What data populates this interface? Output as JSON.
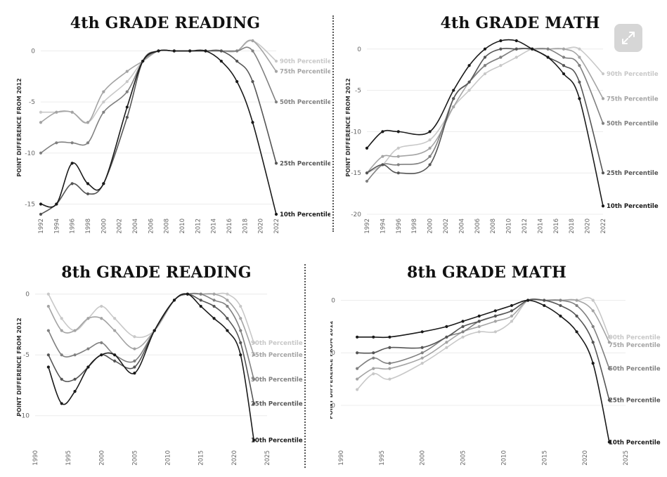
{
  "colors": {
    "p10": "#1a1a1a",
    "p25": "#555555",
    "p50": "#808080",
    "p75": "#a4a4a4",
    "p90": "#c8c8c8"
  },
  "chart_data": [
    {
      "type": "line",
      "title": "4th GRADE READING",
      "ylabel": "POINT DIFFERENCE FROM 2012",
      "xlim": [
        1992,
        2022
      ],
      "ylim": [
        -16,
        1
      ],
      "yticks": [
        0,
        -5,
        -10,
        -15
      ],
      "xticks": [
        1992,
        1994,
        1996,
        1998,
        2000,
        2002,
        2004,
        2006,
        2008,
        2010,
        2012,
        2014,
        2016,
        2018,
        2020,
        2022
      ],
      "x": [
        1992,
        1994,
        1996,
        1998,
        2000,
        2003,
        2005,
        2007,
        2009,
        2011,
        2013,
        2015,
        2017,
        2019,
        2022
      ],
      "series": [
        {
          "name": "90th Percentile",
          "color": "p90",
          "values": [
            -6,
            -6,
            -6,
            -7,
            -5,
            -3,
            -1,
            0,
            0,
            0,
            0,
            0,
            0,
            1,
            -1
          ]
        },
        {
          "name": "75th Percentile",
          "color": "p75",
          "values": [
            -7,
            -6,
            -6,
            -7,
            -4,
            -2,
            -1,
            0,
            0,
            0,
            0,
            0,
            0,
            1,
            -2
          ]
        },
        {
          "name": "50th Percentile",
          "color": "p50",
          "values": [
            -10,
            -9,
            -9,
            -9,
            -6,
            -4,
            -1,
            0,
            0,
            0,
            0,
            0,
            0,
            0,
            -5
          ]
        },
        {
          "name": "25th Percentile",
          "color": "p25",
          "values": [
            -16,
            -15,
            -13,
            -14,
            -13,
            -6.5,
            -1,
            0,
            0,
            0,
            0,
            0,
            -1,
            -3,
            -11
          ]
        },
        {
          "name": "10th Percentile",
          "color": "p10",
          "values": [
            -15,
            -15,
            -11,
            -13,
            -13,
            -5.5,
            -1,
            0,
            0,
            0,
            0,
            -1,
            -3,
            -7,
            -16
          ]
        }
      ]
    },
    {
      "type": "line",
      "title": "4th GRADE MATH",
      "ylabel": "POINT DIFFERENCE FROM 2012",
      "xlim": [
        1992,
        2022
      ],
      "ylim": [
        -20,
        1
      ],
      "yticks": [
        0,
        -5,
        -10,
        -15,
        -20
      ],
      "xticks": [
        1992,
        1994,
        1996,
        1998,
        2000,
        2002,
        2004,
        2006,
        2008,
        2010,
        2012,
        2014,
        2016,
        2018,
        2020,
        2022
      ],
      "x": [
        1992,
        1994,
        1996,
        2000,
        2003,
        2005,
        2007,
        2009,
        2011,
        2013,
        2015,
        2017,
        2019,
        2022
      ],
      "series": [
        {
          "name": "90th Percentile",
          "color": "p90",
          "values": [
            -15,
            -14,
            -12,
            -11,
            -7,
            -5,
            -3,
            -2,
            -1,
            0,
            0,
            0,
            0,
            -3
          ]
        },
        {
          "name": "75th Percentile",
          "color": "p75",
          "values": [
            -15,
            -13,
            -13,
            -12,
            -7,
            -4,
            -2,
            -1,
            0,
            0,
            0,
            0,
            -1,
            -6
          ]
        },
        {
          "name": "50th Percentile",
          "color": "p50",
          "values": [
            -16,
            -14,
            -14,
            -13,
            -6,
            -4,
            -2,
            -1,
            0,
            0,
            0,
            -1,
            -2,
            -9
          ]
        },
        {
          "name": "25th Percentile",
          "color": "p25",
          "values": [
            -15,
            -14,
            -15,
            -14,
            -6,
            -4,
            -1,
            0,
            0,
            0,
            -1,
            -2,
            -4,
            -15
          ]
        },
        {
          "name": "10th Percentile",
          "color": "p10",
          "values": [
            -12,
            -10,
            -10,
            -10,
            -5,
            -2,
            0,
            1,
            1,
            0,
            -1,
            -3,
            -6,
            -19
          ]
        }
      ]
    },
    {
      "type": "line",
      "title": "8th GRADE READING",
      "ylabel": "POINT DIFFERENCE FROM 2012",
      "xlim": [
        1990,
        2025
      ],
      "ylim": [
        -12.5,
        0.5
      ],
      "yticks": [
        0,
        -5,
        -10
      ],
      "xticks": [
        1990,
        1995,
        2000,
        2005,
        2010,
        2015,
        2020,
        2025
      ],
      "x": [
        1992,
        1994,
        1996,
        1998,
        2000,
        2002,
        2005,
        2008,
        2011,
        2013,
        2015,
        2017,
        2019,
        2021,
        2023
      ],
      "series": [
        {
          "name": "90th Percentile",
          "color": "p90",
          "values": [
            0,
            -2,
            -3,
            -2,
            -1,
            -2,
            -3.5,
            -3,
            -0.5,
            0,
            0,
            0,
            0,
            -1,
            -4
          ]
        },
        {
          "name": "75th Percentile",
          "color": "p75",
          "values": [
            -1,
            -3,
            -3,
            -2,
            -2,
            -3,
            -4.5,
            -3,
            -0.5,
            0,
            0,
            0,
            -0.5,
            -2,
            -5
          ]
        },
        {
          "name": "50th Percentile",
          "color": "p50",
          "values": [
            -3,
            -5,
            -5,
            -4.5,
            -4,
            -5,
            -5.5,
            -3,
            -0.5,
            0,
            0,
            -0.5,
            -1,
            -3,
            -7
          ]
        },
        {
          "name": "25th Percentile",
          "color": "p25",
          "values": [
            -5,
            -7,
            -7,
            -6,
            -5,
            -5.5,
            -6,
            -3,
            -0.5,
            0,
            -0.5,
            -1,
            -2,
            -4,
            -9
          ]
        },
        {
          "name": "10th Percentile",
          "color": "p10",
          "values": [
            -6,
            -9,
            -8,
            -6,
            -5,
            -5,
            -6.5,
            -3,
            -0.5,
            0,
            -1,
            -2,
            -3,
            -5,
            -12
          ]
        }
      ]
    },
    {
      "type": "line",
      "title": "8th GRADE MATH",
      "ylabel": "POINT DIFFERENCE FROM 2012",
      "xlim": [
        1990,
        2025
      ],
      "ylim": [
        -27.5,
        1
      ],
      "yticks": [
        0,
        -10,
        -20
      ],
      "xticks": [
        1990,
        1995,
        2000,
        2005,
        2010,
        2015,
        2020,
        2025
      ],
      "x": [
        1992,
        1994,
        1996,
        2000,
        2003,
        2005,
        2007,
        2009,
        2011,
        2013,
        2015,
        2017,
        2019,
        2021,
        2023
      ],
      "series": [
        {
          "name": "90th Percentile",
          "color": "p90",
          "values": [
            -17,
            -14,
            -15,
            -12,
            -9,
            -7,
            -6,
            -6,
            -4,
            0,
            0,
            0,
            0,
            0,
            -7
          ]
        },
        {
          "name": "75th Percentile",
          "color": "p75",
          "values": [
            -15,
            -13,
            -13,
            -11,
            -8,
            -6,
            -5,
            -4,
            -3,
            0,
            0,
            0,
            0,
            -2,
            -8
          ]
        },
        {
          "name": "50th Percentile",
          "color": "p50",
          "values": [
            -13,
            -11,
            -12,
            -10,
            -7,
            -6,
            -4,
            -3,
            -2,
            0,
            0,
            0,
            -1,
            -5,
            -13
          ]
        },
        {
          "name": "25th Percentile",
          "color": "p25",
          "values": [
            -10,
            -10,
            -9,
            -9,
            -7,
            -5,
            -4,
            -3,
            -2,
            0,
            0,
            -1,
            -3,
            -8,
            -19
          ]
        },
        {
          "name": "10th Percentile",
          "color": "p10",
          "values": [
            -7,
            -7,
            -7,
            -6,
            -5,
            -4,
            -3,
            -2,
            -1,
            0,
            -1,
            -3,
            -6,
            -12,
            -27
          ]
        }
      ]
    }
  ]
}
